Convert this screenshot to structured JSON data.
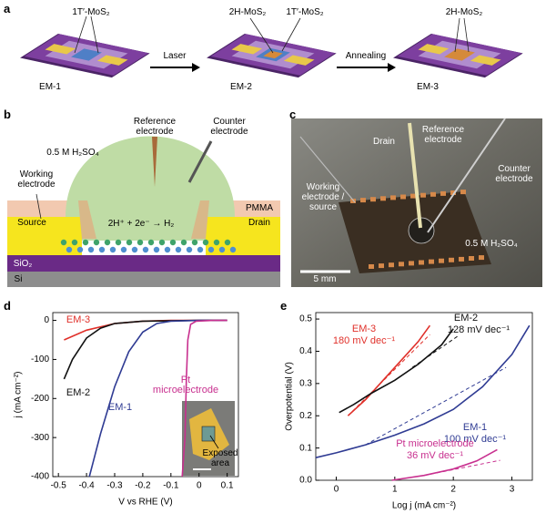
{
  "panel_letters": [
    "a",
    "b",
    "c",
    "d",
    "e"
  ],
  "diagram_a": {
    "material_1T": "1T′-MoS₂",
    "material_2H": "2H-MoS₂",
    "steps": [
      "Laser",
      "Annealing"
    ],
    "devices": [
      "EM-1",
      "EM-2",
      "EM-3"
    ]
  },
  "diagram_b": {
    "reference": "Reference electrode",
    "counter": "Counter electrode",
    "electrolyte": "0.5 M H₂SO₄",
    "working": "Working electrode",
    "pmma": "PMMA",
    "source": "Source",
    "drain": "Drain",
    "reaction": "2H⁺ + 2e⁻ → H₂",
    "sio2": "SiO₂",
    "si": "Si"
  },
  "photo_c": {
    "drain": "Drain",
    "reference": "Reference electrode",
    "working": "Working electrode / source",
    "counter": "Counter electrode",
    "electrolyte": "0.5 M H₂SO₄",
    "scale": "5 mm"
  },
  "chart_data": [
    {
      "type": "line",
      "x_label": "V vs RHE (V)",
      "y_label": "j (mA cm⁻²)",
      "xlim": [
        -0.52,
        0.14
      ],
      "ylim": [
        -400,
        20
      ],
      "xticks": [
        -0.5,
        -0.4,
        -0.3,
        -0.2,
        -0.1,
        0,
        0.1
      ],
      "yticks": [
        0,
        -100,
        -200,
        -300,
        -400
      ],
      "inset_label": "Exposed area",
      "series": [
        {
          "name": "EM-3",
          "color": "#e0302a",
          "x": [
            -0.48,
            -0.4,
            -0.3,
            -0.2,
            -0.1,
            0.1
          ],
          "values": [
            -50,
            -25,
            -8,
            -2,
            0,
            0
          ]
        },
        {
          "name": "EM-2",
          "color": "#111111",
          "x": [
            -0.48,
            -0.45,
            -0.4,
            -0.35,
            -0.3,
            -0.2,
            0,
            0.1
          ],
          "values": [
            -150,
            -100,
            -45,
            -20,
            -8,
            -2,
            0,
            0
          ]
        },
        {
          "name": "EM-1",
          "color": "#2f3b93",
          "x": [
            -0.39,
            -0.35,
            -0.3,
            -0.25,
            -0.2,
            -0.15,
            -0.1,
            0,
            0.1
          ],
          "values": [
            -400,
            -290,
            -170,
            -80,
            -30,
            -8,
            -2,
            0,
            0
          ]
        },
        {
          "name": "Pt microelectrode",
          "color": "#c8308f",
          "x": [
            -0.06,
            -0.05,
            -0.045,
            -0.04,
            -0.03,
            -0.01,
            0.05,
            0.1
          ],
          "values": [
            -400,
            -300,
            -150,
            -50,
            -10,
            -2,
            0,
            0
          ]
        }
      ]
    },
    {
      "type": "line",
      "x_label": "Log j (mA cm⁻²)",
      "y_label": "Overpotential (V)",
      "xlim": [
        -0.35,
        3.35
      ],
      "ylim": [
        0,
        0.52
      ],
      "xticks": [
        0,
        1,
        2,
        3
      ],
      "yticks": [
        {
          "value": 0,
          "label": "0.0"
        },
        0.1,
        0.2,
        0.3,
        0.4,
        0.5
      ],
      "series": [
        {
          "name": "EM-3",
          "color": "#e0302a",
          "label": "180 mV dec⁻¹",
          "x": [
            0.2,
            0.5,
            0.8,
            1.1,
            1.4,
            1.6
          ],
          "values": [
            0.2,
            0.25,
            0.31,
            0.37,
            0.43,
            0.48
          ],
          "fit": {
            "x": [
              0.2,
              1.6
            ],
            "values": [
              0.2,
              0.452
            ]
          }
        },
        {
          "name": "EM-2",
          "color": "#111111",
          "label": "128 mV dec⁻¹",
          "x": [
            0.05,
            0.3,
            0.6,
            1,
            1.4,
            1.8,
            2.0
          ],
          "values": [
            0.21,
            0.235,
            0.27,
            0.31,
            0.36,
            0.42,
            0.47
          ],
          "fit": {
            "x": [
              1.3,
              2.1
            ],
            "values": [
              0.35,
              0.45
            ]
          }
        },
        {
          "name": "EM-1",
          "color": "#2f3b93",
          "label": "100 mV dec⁻¹",
          "x": [
            -0.35,
            0,
            0.5,
            1,
            1.5,
            2,
            2.5,
            3,
            3.3
          ],
          "values": [
            0.07,
            0.085,
            0.11,
            0.14,
            0.175,
            0.22,
            0.29,
            0.39,
            0.48
          ],
          "fit": {
            "x": [
              0.5,
              2.9
            ],
            "values": [
              0.11,
              0.35
            ]
          }
        },
        {
          "name": "Pt microelectrode",
          "color": "#c8308f",
          "label": "36 mV dec⁻¹",
          "x": [
            0.95,
            1.5,
            2,
            2.4,
            2.75
          ],
          "values": [
            0,
            0.015,
            0.035,
            0.06,
            0.095
          ],
          "fit": {
            "x": [
              1.5,
              2.8
            ],
            "values": [
              0.015,
              0.062
            ]
          }
        }
      ]
    }
  ]
}
